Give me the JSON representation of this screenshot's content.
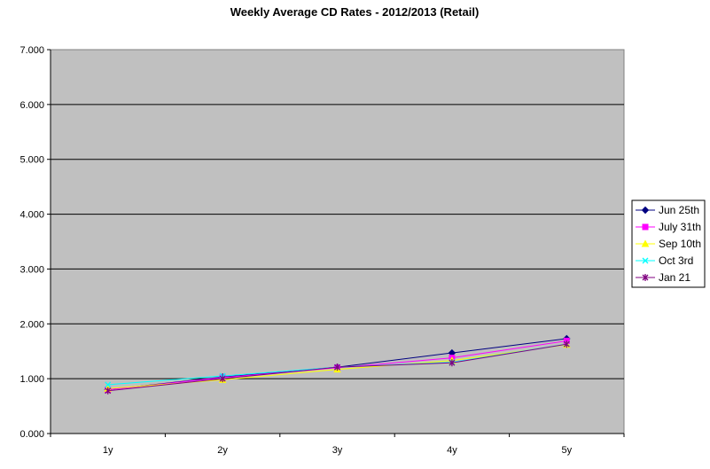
{
  "chart_data": {
    "type": "line",
    "title": "Weekly Average CD Rates - 2012/2013 (Retail)",
    "xlabel": "",
    "ylabel": "",
    "categories": [
      "1y",
      "2y",
      "3y",
      "4y",
      "5y"
    ],
    "ylim": [
      0,
      7
    ],
    "yticks": [
      "0.000",
      "1.000",
      "2.000",
      "3.000",
      "4.000",
      "5.000",
      "6.000",
      "7.000"
    ],
    "grid": true,
    "legend_position": "right",
    "plot_background": "#c0c0c0",
    "series": [
      {
        "name": "Jun 25th",
        "values": [
          0.8,
          1.03,
          1.21,
          1.47,
          1.73
        ],
        "color": "#000080",
        "marker": "diamond"
      },
      {
        "name": "July 31th",
        "values": [
          0.8,
          1.02,
          1.2,
          1.38,
          1.69
        ],
        "color": "#ff00ff",
        "marker": "square"
      },
      {
        "name": "Sep 10th",
        "values": [
          0.82,
          0.98,
          1.17,
          1.33,
          1.62
        ],
        "color": "#ffff00",
        "marker": "triangle"
      },
      {
        "name": "Oct 3rd",
        "values": [
          0.89,
          1.05,
          1.21,
          1.3,
          1.63
        ],
        "color": "#00ffff",
        "marker": "x"
      },
      {
        "name": "Jan 21",
        "values": [
          0.78,
          1.0,
          1.21,
          1.29,
          1.63
        ],
        "color": "#800080",
        "marker": "star"
      }
    ]
  }
}
